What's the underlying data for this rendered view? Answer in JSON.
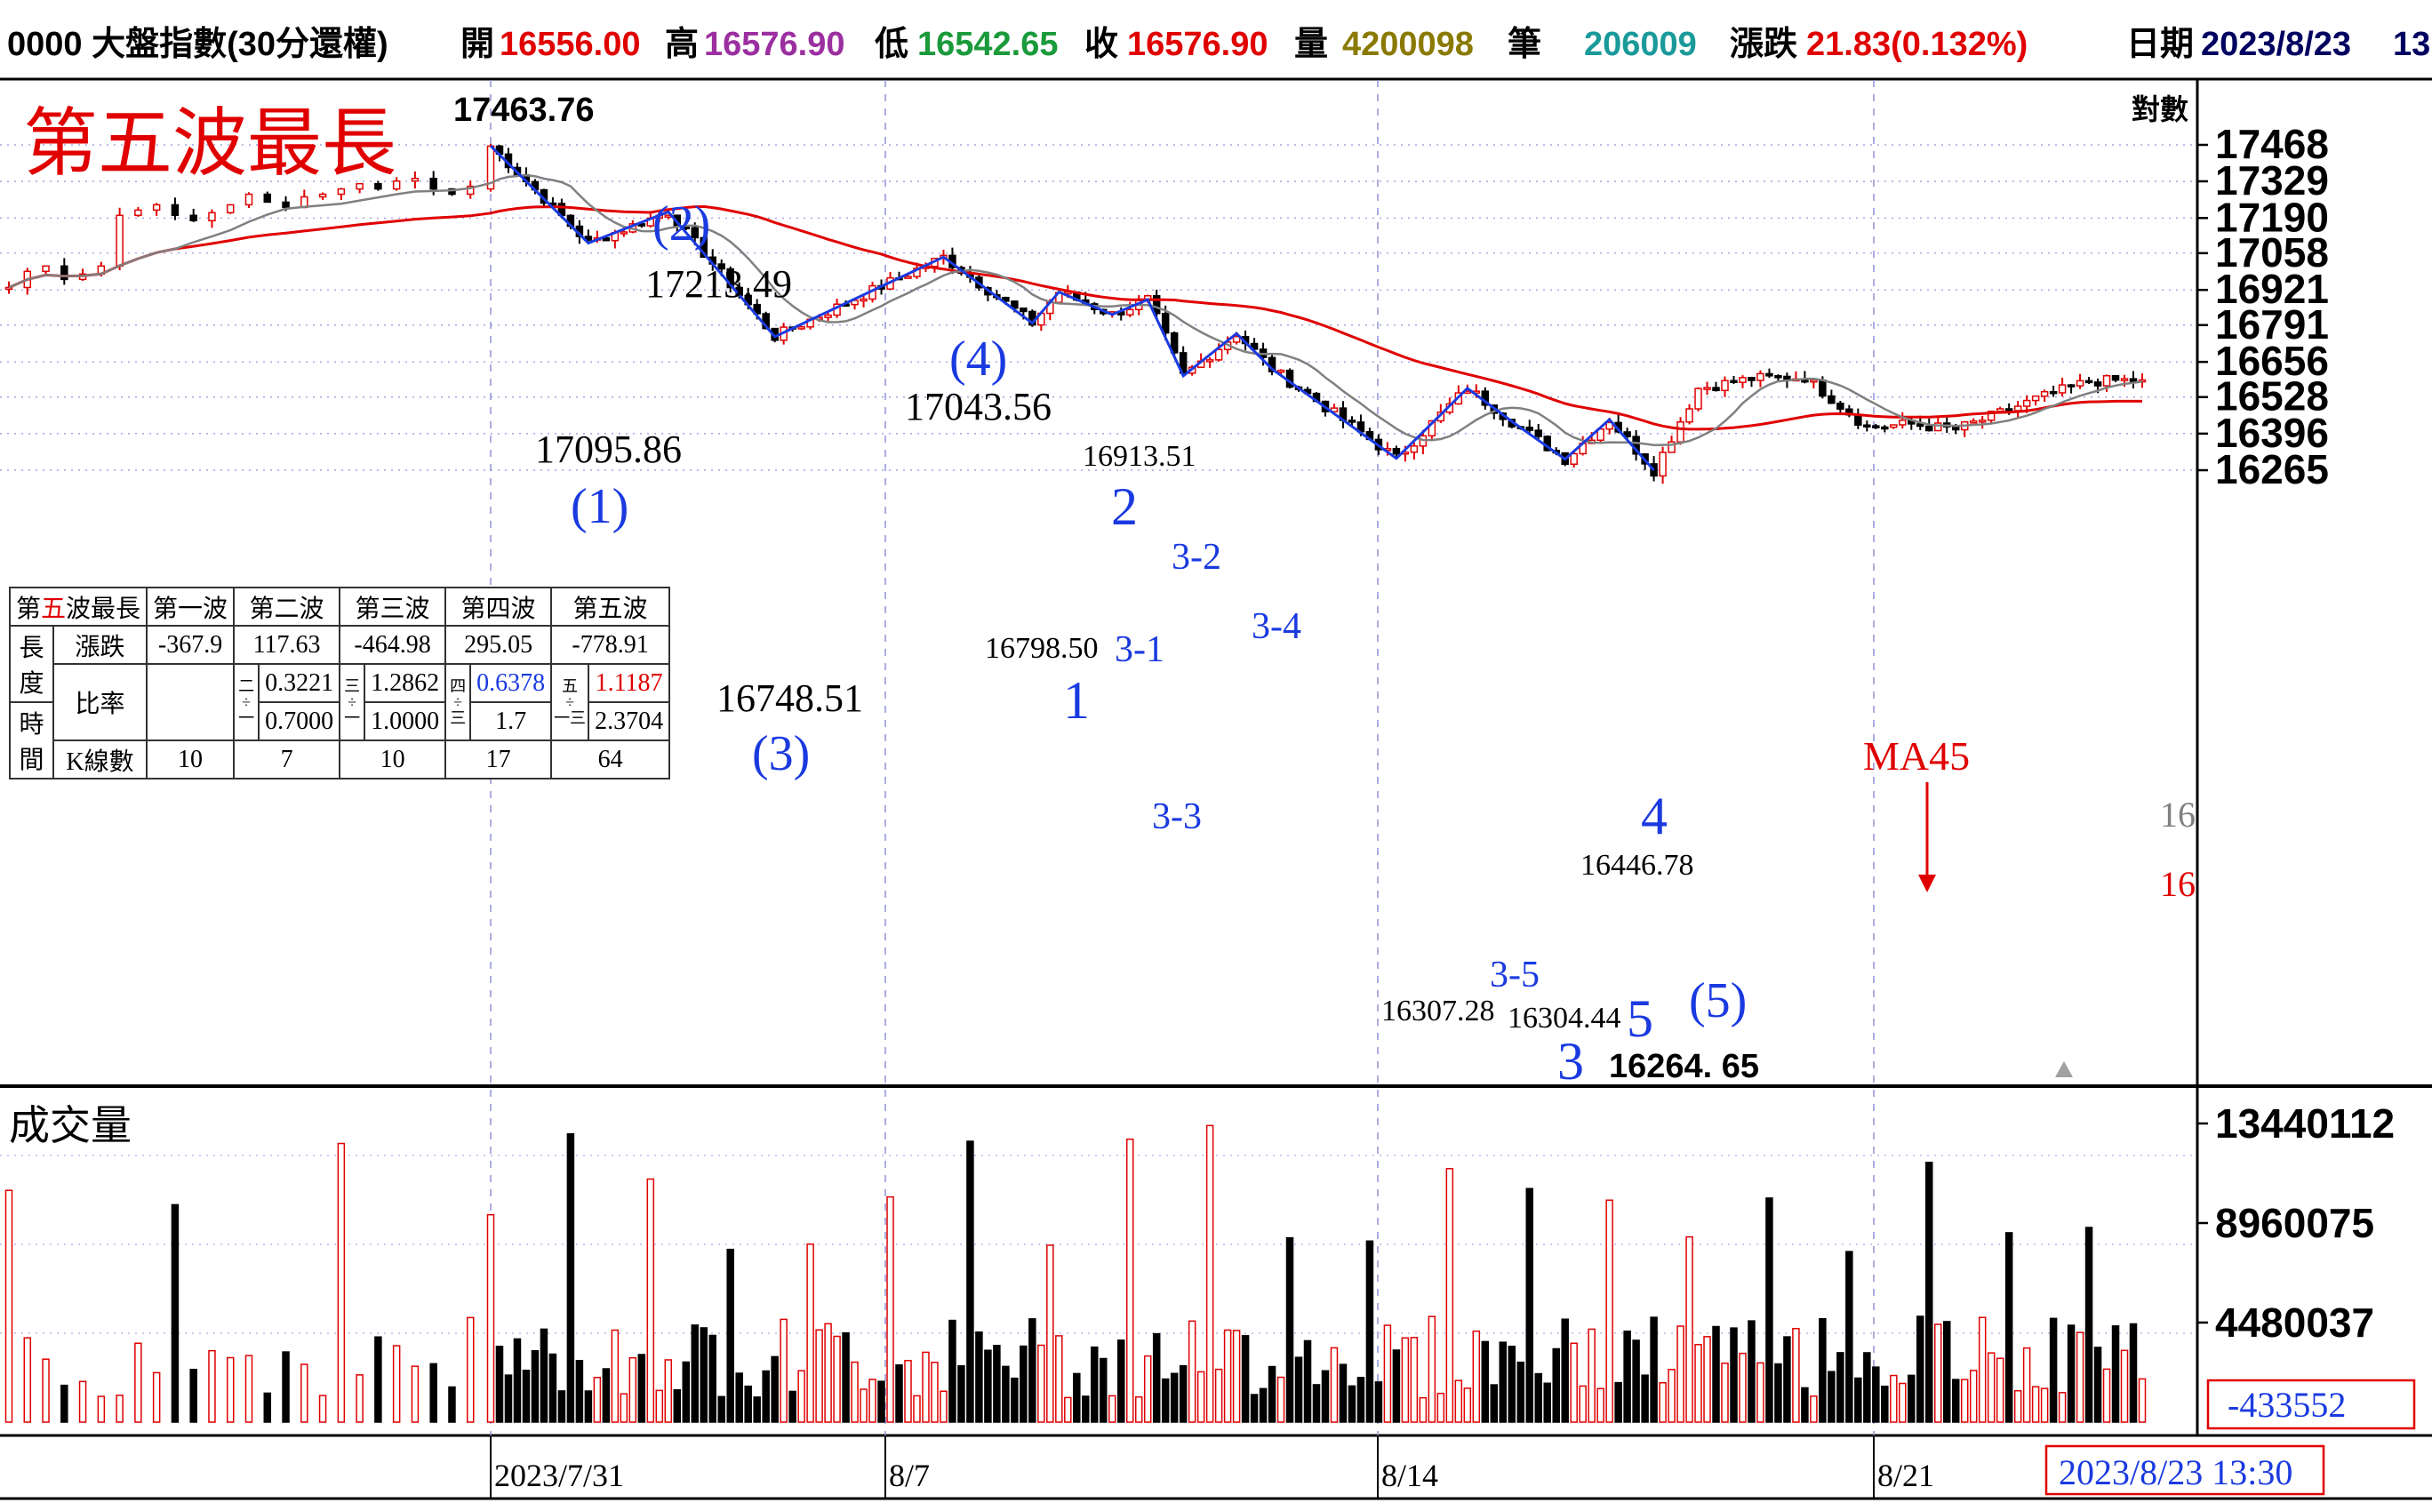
{
  "header": {
    "symbol": "0000 大盤指數(30分還權)",
    "open_label": "開",
    "open": "16556.00",
    "high_label": "高",
    "high": "16576.90",
    "low_label": "低",
    "low": "16542.65",
    "close_label": "收",
    "close": "16576.90",
    "volume_label": "量",
    "volume": "4200098",
    "trades_label": "筆",
    "trades": "206009",
    "change_label": "漲跌",
    "change": "21.83(0.132%)",
    "date_label": "日期",
    "date": "2023/8/23",
    "time_partial": "13"
  },
  "chart_data": {
    "type": "candlestick",
    "title": "第五波最長",
    "scale": "log",
    "scale_label": "對數",
    "price_ticks": [
      17468,
      17329,
      17190,
      17058,
      16921,
      16791,
      16656,
      16528,
      16396,
      16265
    ],
    "volume_title": "成交量",
    "volume_ticks": [
      "13440112",
      "8960075",
      "4480037"
    ],
    "volume_readout": "-433552",
    "date_ticks": [
      "2023/7/31",
      "8/7",
      "8/14",
      "8/21"
    ],
    "cursor_readout": "2023/8/23 13:30",
    "ma_label": "MA45",
    "right_edge_labels": [
      "16",
      "16"
    ],
    "price_annotations": [
      "17463.76",
      "17213.49",
      "17095.86",
      "17043.56",
      "16913.51",
      "16798.50",
      "16748.51",
      "16446.78",
      "16307.28",
      "16304.44",
      "16264. 65"
    ],
    "wave_labels_major": [
      "(1)",
      "(2)",
      "(3)",
      "(4)",
      "(5)"
    ],
    "wave_labels_minor": [
      "1",
      "2",
      "3",
      "4",
      "5"
    ],
    "wave_labels_sub": [
      "3-1",
      "3-2",
      "3-3",
      "3-4",
      "3-5"
    ],
    "pivots": [
      {
        "i": 0,
        "price": 17463.76
      },
      {
        "i": 11,
        "price": 17095.86
      },
      {
        "i": 20,
        "price": 17213.49
      },
      {
        "i": 32,
        "price": 16748.51
      },
      {
        "i": 51,
        "price": 17043.56
      },
      {
        "i": 61,
        "price": 16798.5
      },
      {
        "i": 64,
        "price": 16913.51
      },
      {
        "i": 70,
        "price": 16830
      },
      {
        "i": 74,
        "price": 16885
      },
      {
        "i": 78,
        "price": 16605
      },
      {
        "i": 84,
        "price": 16760
      },
      {
        "i": 88,
        "price": 16630
      },
      {
        "i": 102,
        "price": 16307.28
      },
      {
        "i": 110,
        "price": 16560
      },
      {
        "i": 115,
        "price": 16440
      },
      {
        "i": 121,
        "price": 16304.44
      },
      {
        "i": 126,
        "price": 16446.78
      },
      {
        "i": 131,
        "price": 16264.65
      }
    ]
  },
  "wave_table": {
    "title_prefix": "第",
    "title_red": "五",
    "title_suffix": "波最長",
    "headers": [
      "第一波",
      "第二波",
      "第三波",
      "第四波",
      "第五波"
    ],
    "group_label": [
      "長",
      "度",
      "時",
      "間"
    ],
    "row_change_label": "漲跌",
    "row_change": [
      "-367.9",
      "117.63",
      "-464.98",
      "295.05",
      "-778.91"
    ],
    "row_ratio_label": "比率",
    "ratio_marks": {
      "w2": [
        "二",
        "÷",
        "一"
      ],
      "w3": [
        "三",
        "÷",
        "一"
      ],
      "w4": [
        "四",
        "÷",
        "三"
      ],
      "w5": [
        "五",
        "÷",
        "一三"
      ]
    },
    "ratio_length": [
      "0.3221",
      "1.2862",
      "0.6378",
      "1.1187"
    ],
    "ratio_time": [
      "0.7000",
      "1.0000",
      "1.7",
      "2.3704"
    ],
    "row_bars_label": "K線數",
    "row_bars": [
      "10",
      "7",
      "10",
      "17",
      "64"
    ]
  },
  "colors": {
    "up": "#e00000",
    "down": "#000000",
    "ma_long": "#e00000",
    "ma_short": "#808080",
    "wave_line": "#1a3ae0",
    "grid": "#9090d8"
  }
}
